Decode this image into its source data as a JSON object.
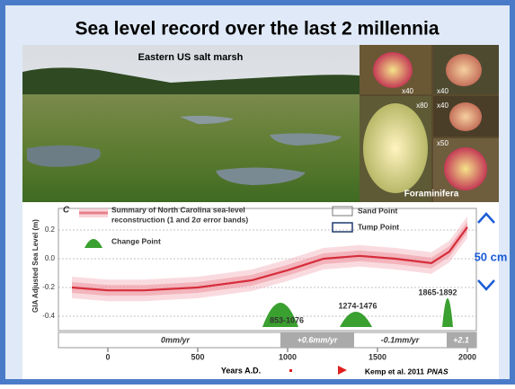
{
  "slide": {
    "title": "Sea level record over the last 2 millennia",
    "photo_caption": "Eastern US salt marsh",
    "foram_caption": "Foraminifera",
    "magnifications": [
      "x40",
      "x40",
      "x80",
      "x40",
      "x50"
    ],
    "rate_note": "50 cm",
    "credit": "Kemp et al. 2011",
    "credit_journal": "PNAS"
  },
  "chart_data": {
    "type": "line",
    "panel_letter": "C",
    "ylabel": "GIA Adjusted Sea Level (m)",
    "xlabel": "Years A.D.",
    "legend": {
      "summary": [
        "Summary of North Carolina sea-level",
        "reconstruction (1 and 2σ error bands)"
      ],
      "change_point": "Change Point",
      "sand_point": "Sand Point",
      "tump_point": "Tump Point"
    },
    "x": [
      -200,
      0,
      200,
      500,
      800,
      1000,
      1200,
      1400,
      1600,
      1800,
      1900,
      2000
    ],
    "series": [
      {
        "name": "Summary of North Carolina sea-level reconstruction",
        "color": "#d62d3a",
        "values": [
          -0.2,
          -0.22,
          -0.22,
          -0.2,
          -0.15,
          -0.08,
          0.0,
          0.02,
          0.0,
          -0.03,
          0.05,
          0.22
        ]
      }
    ],
    "change_points": [
      "853-1076",
      "1274-1476",
      "1865-1892"
    ],
    "rates": [
      "0mm/yr",
      "+0.6mm/yr",
      "-0.1mm/yr",
      "+2.1"
    ],
    "xlim": [
      -275,
      2050
    ],
    "ylim": [
      -0.5,
      0.35
    ],
    "xticks": [
      0,
      500,
      1000,
      1500,
      2000
    ],
    "yticks": [
      0.2,
      {
        "value": 0,
        "label": "0.0"
      },
      -0.2,
      -0.4
    ]
  }
}
